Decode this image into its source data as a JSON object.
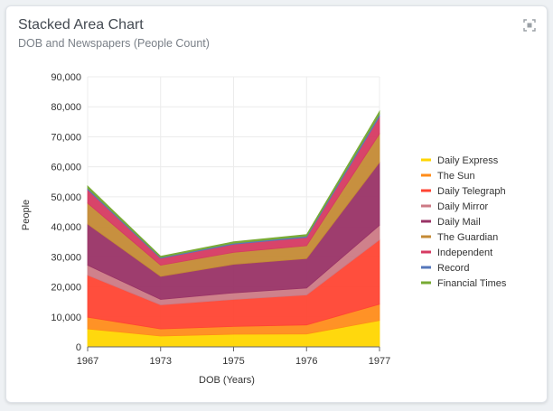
{
  "header": {
    "title": "Stacked Area Chart",
    "subtitle": "DOB and Newspapers (People Count)",
    "expand_icon": "expand-icon"
  },
  "chart_data": {
    "type": "area",
    "stacked": true,
    "categories": [
      "1967",
      "1973",
      "1975",
      "1976",
      "1977"
    ],
    "xlabel": "DOB (Years)",
    "ylabel": "People",
    "ylim": [
      0,
      90000
    ],
    "yticks": [
      0,
      10000,
      20000,
      30000,
      40000,
      50000,
      60000,
      70000,
      80000,
      90000
    ],
    "ytick_labels": [
      "0",
      "10,000",
      "20,000",
      "30,000",
      "40,000",
      "50,000",
      "60,000",
      "70,000",
      "80,000",
      "90,000"
    ],
    "grid": true,
    "legend_position": "right",
    "series": [
      {
        "name": "Daily Express",
        "color": "#ffd600",
        "values": [
          6000,
          3600,
          4200,
          4300,
          8800
        ]
      },
      {
        "name": "The Sun",
        "color": "#ff8c1a",
        "values": [
          3900,
          2400,
          2600,
          3000,
          5400
        ]
      },
      {
        "name": "Daily Telegraph",
        "color": "#ff4433",
        "values": [
          14000,
          8000,
          9000,
          10000,
          21500
        ]
      },
      {
        "name": "Daily Mirror",
        "color": "#cc7a85",
        "values": [
          3300,
          1800,
          2200,
          2300,
          4800
        ]
      },
      {
        "name": "Daily Mail",
        "color": "#993366",
        "values": [
          13700,
          7700,
          9500,
          9800,
          21000
        ]
      },
      {
        "name": "The Guardian",
        "color": "#c48a35",
        "values": [
          7000,
          3700,
          4000,
          4300,
          9500
        ]
      },
      {
        "name": "Independent",
        "color": "#d63a62",
        "values": [
          4500,
          2300,
          2700,
          2800,
          5700
        ]
      },
      {
        "name": "Record",
        "color": "#5577bb",
        "values": [
          500,
          300,
          350,
          400,
          800
        ]
      },
      {
        "name": "Financial Times",
        "color": "#77aa33",
        "values": [
          700,
          400,
          450,
          500,
          1000
        ]
      }
    ]
  }
}
